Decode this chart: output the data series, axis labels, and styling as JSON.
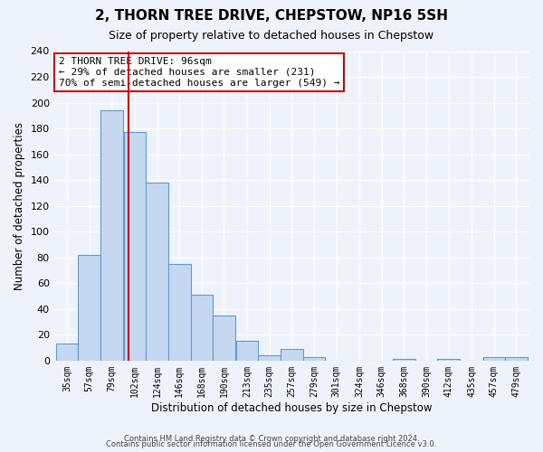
{
  "title": "2, THORN TREE DRIVE, CHEPSTOW, NP16 5SH",
  "subtitle": "Size of property relative to detached houses in Chepstow",
  "xlabel": "Distribution of detached houses by size in Chepstow",
  "ylabel": "Number of detached properties",
  "bar_labels": [
    "35sqm",
    "57sqm",
    "79sqm",
    "102sqm",
    "124sqm",
    "146sqm",
    "168sqm",
    "190sqm",
    "213sqm",
    "235sqm",
    "257sqm",
    "279sqm",
    "301sqm",
    "324sqm",
    "346sqm",
    "368sqm",
    "390sqm",
    "412sqm",
    "435sqm",
    "457sqm",
    "479sqm"
  ],
  "bar_values": [
    13,
    82,
    194,
    177,
    138,
    75,
    51,
    35,
    15,
    4,
    9,
    3,
    0,
    0,
    0,
    1,
    0,
    1,
    0,
    3,
    3
  ],
  "bar_color": "#c5d8f0",
  "bar_edge_color": "#5b9bd5",
  "vline_color": "#cc0000",
  "annotation_title": "2 THORN TREE DRIVE: 96sqm",
  "annotation_line1": "← 29% of detached houses are smaller (231)",
  "annotation_line2": "70% of semi-detached houses are larger (549) →",
  "annotation_box_color": "#ffffff",
  "annotation_box_edge_color": "#cc0000",
  "ylim": [
    0,
    240
  ],
  "yticks": [
    0,
    20,
    40,
    60,
    80,
    100,
    120,
    140,
    160,
    180,
    200,
    220,
    240
  ],
  "footer1": "Contains HM Land Registry data © Crown copyright and database right 2024.",
  "footer2": "Contains public sector information licensed under the Open Government Licence v3.0.",
  "background_color": "#eef2fa",
  "grid_color": "#ffffff"
}
